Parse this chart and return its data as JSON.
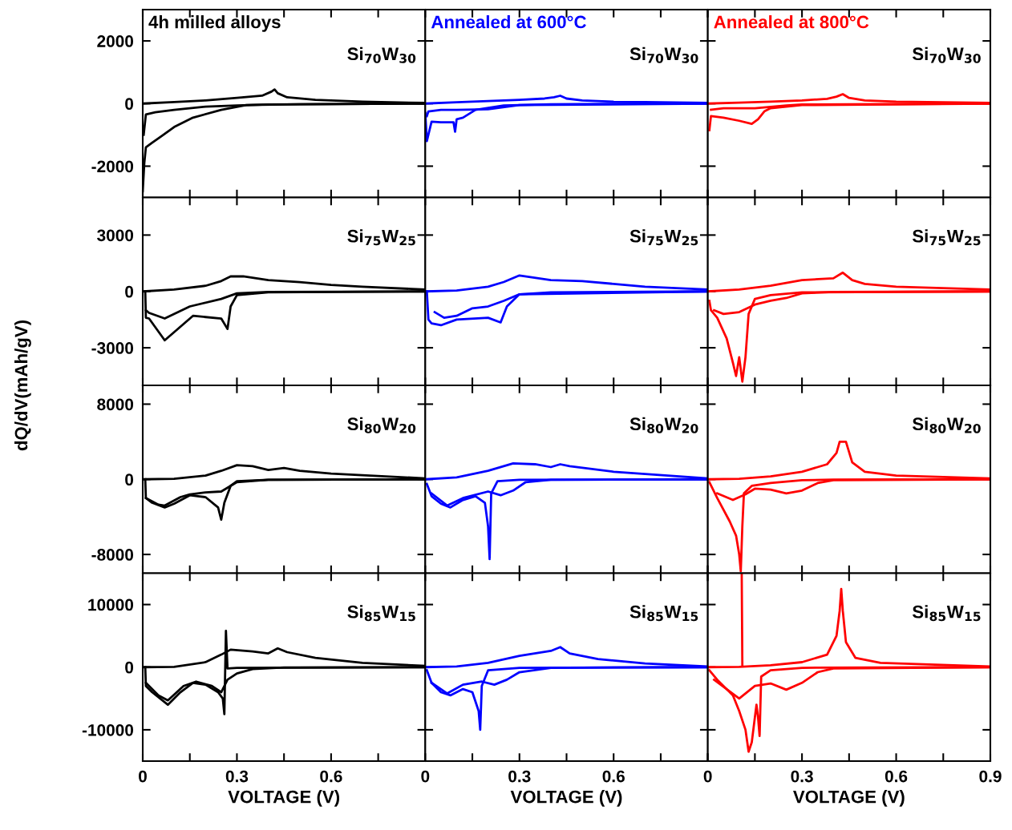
{
  "chart_data": [
    {
      "type": "line",
      "title": "4h milled alloys",
      "annotations": [
        "Si$_{70}$W$_{30}$"
      ],
      "xlim": [
        0,
        0.9
      ],
      "ylim": [
        -3000,
        3000
      ],
      "yticks": [
        -2000,
        0,
        2000
      ],
      "xticks": [
        0,
        {
          "value": 0.15,
          "label": null
        },
        0.3,
        {
          "value": 0.45,
          "label": null
        },
        0.6,
        {
          "value": 0.75,
          "label": null
        },
        {
          "value": 0.9,
          "label": null
        }
      ],
      "tick_labels": "y",
      "series": [
        {
          "color": "#000000",
          "x": [
            0,
            0.1,
            0.2,
            0.3,
            0.38,
            0.41,
            0.42,
            0.43,
            0.46,
            0.55,
            0.7,
            0.9
          ],
          "values": [
            0,
            50,
            100,
            180,
            250,
            380,
            450,
            330,
            200,
            120,
            60,
            20
          ]
        },
        {
          "color": "#000000",
          "x": [
            0.9,
            0.5,
            0.33,
            0.25,
            0.16,
            0.1,
            0.06,
            0.03,
            0.01,
            0.005,
            0
          ],
          "values": [
            0,
            -20,
            -50,
            -200,
            -450,
            -750,
            -1040,
            -1250,
            -1400,
            -1900,
            -2800
          ]
        },
        {
          "color": "#000000",
          "x": [
            0.9,
            0.4,
            0.3,
            0.2,
            0.1,
            0.04,
            0.01,
            0.003
          ],
          "values": [
            0,
            -30,
            -60,
            -100,
            -200,
            -280,
            -350,
            -1000
          ]
        }
      ]
    },
    {
      "type": "line",
      "title": "Annealed at 600°C",
      "annotations": [
        "Si$_{70}$W$_{30}$"
      ],
      "xlim": [
        0,
        0.9
      ],
      "ylim": [
        -3000,
        3000
      ],
      "yticks": [
        -2000,
        0,
        2000
      ],
      "xticks": [
        0,
        {
          "value": 0.15,
          "label": null
        },
        0.3,
        {
          "value": 0.45,
          "label": null
        },
        0.6,
        {
          "value": 0.75,
          "label": null
        },
        {
          "value": 0.9,
          "label": null
        }
      ],
      "tick_labels": false,
      "series": [
        {
          "color": "#0000ff",
          "x": [
            0,
            0.1,
            0.2,
            0.3,
            0.38,
            0.41,
            0.43,
            0.45,
            0.5,
            0.6,
            0.9
          ],
          "values": [
            0,
            40,
            80,
            120,
            160,
            200,
            250,
            160,
            100,
            60,
            20
          ]
        },
        {
          "color": "#0000ff",
          "x": [
            0.9,
            0.4,
            0.25,
            0.16,
            0.12,
            0.1,
            0.095,
            0.09,
            0.05,
            0.02,
            0.005,
            0
          ],
          "values": [
            0,
            -20,
            -60,
            -200,
            -450,
            -500,
            -900,
            -600,
            -600,
            -580,
            -1200,
            -300
          ]
        },
        {
          "color": "#0000ff",
          "x": [
            0.9,
            0.3,
            0.2,
            0.1,
            0.05,
            0.01,
            0.005
          ],
          "values": [
            0,
            -50,
            -180,
            -200,
            -200,
            -250,
            -400
          ]
        }
      ]
    },
    {
      "type": "line",
      "title": "Annealed at 800°C",
      "annotations": [
        "Si$_{70}$W$_{30}$"
      ],
      "xlim": [
        0,
        0.9
      ],
      "ylim": [
        -3000,
        3000
      ],
      "yticks": [
        -2000,
        0,
        2000
      ],
      "xticks": [
        0,
        {
          "value": 0.15,
          "label": null
        },
        0.3,
        {
          "value": 0.45,
          "label": null
        },
        0.6,
        {
          "value": 0.75,
          "label": null
        },
        {
          "value": 0.9,
          "label": null
        }
      ],
      "tick_labels": false,
      "series": [
        {
          "color": "#ff0000",
          "x": [
            0,
            0.1,
            0.2,
            0.3,
            0.38,
            0.41,
            0.43,
            0.45,
            0.5,
            0.6,
            0.9
          ],
          "values": [
            0,
            30,
            60,
            100,
            150,
            220,
            300,
            180,
            100,
            60,
            20
          ]
        },
        {
          "color": "#ff0000",
          "x": [
            0.9,
            0.3,
            0.2,
            0.18,
            0.16,
            0.14,
            0.1,
            0.05,
            0.01,
            0.005
          ],
          "values": [
            0,
            -50,
            -150,
            -250,
            -500,
            -650,
            -550,
            -450,
            -400,
            -850
          ]
        },
        {
          "color": "#ff0000",
          "x": [
            0.9,
            0.3,
            0.25,
            0.15,
            0.05,
            0.01
          ],
          "values": [
            0,
            -30,
            -60,
            -150,
            -150,
            -200
          ]
        }
      ]
    },
    {
      "type": "line",
      "annotations": [
        "Si$_{75}$W$_{25}$"
      ],
      "xlim": [
        0,
        0.9
      ],
      "ylim": [
        -5000,
        5000
      ],
      "yticks": [
        -3000,
        0,
        3000
      ],
      "xticks": [
        0,
        {
          "value": 0.15,
          "label": null
        },
        0.3,
        {
          "value": 0.45,
          "label": null
        },
        0.6,
        {
          "value": 0.75,
          "label": null
        },
        {
          "value": 0.9,
          "label": null
        }
      ],
      "tick_labels": "y",
      "ylabel": "dQ/dV(mAh/gV)",
      "series": [
        {
          "color": "#000000",
          "x": [
            0,
            0.1,
            0.2,
            0.25,
            0.28,
            0.32,
            0.4,
            0.5,
            0.6,
            0.7,
            0.9
          ],
          "values": [
            0,
            100,
            300,
            550,
            800,
            800,
            600,
            500,
            350,
            250,
            100
          ]
        },
        {
          "color": "#000000",
          "x": [
            0.9,
            0.4,
            0.3,
            0.28,
            0.27,
            0.25,
            0.16,
            0.07,
            0.02,
            0.01,
            0.008
          ],
          "values": [
            0,
            -50,
            -200,
            -800,
            -2000,
            -1440,
            -1300,
            -2600,
            -1440,
            -1400,
            0
          ]
        },
        {
          "color": "#000000",
          "x": [
            0.9,
            0.4,
            0.3,
            0.25,
            0.15,
            0.07,
            0.02,
            0.01
          ],
          "values": [
            0,
            -30,
            -100,
            -400,
            -800,
            -1440,
            -1140,
            -1000
          ]
        }
      ]
    },
    {
      "type": "line",
      "annotations": [
        "Si$_{75}$W$_{25}$"
      ],
      "xlim": [
        0,
        0.9
      ],
      "ylim": [
        -5000,
        5000
      ],
      "yticks": [
        -3000,
        0,
        3000
      ],
      "xticks": [
        0,
        {
          "value": 0.15,
          "label": null
        },
        0.3,
        {
          "value": 0.45,
          "label": null
        },
        0.6,
        {
          "value": 0.75,
          "label": null
        },
        {
          "value": 0.9,
          "label": null
        }
      ],
      "tick_labels": false,
      "series": [
        {
          "color": "#0000ff",
          "x": [
            0,
            0.1,
            0.2,
            0.25,
            0.3,
            0.4,
            0.5,
            0.6,
            0.7,
            0.9
          ],
          "values": [
            0,
            50,
            250,
            500,
            850,
            600,
            550,
            400,
            250,
            100
          ]
        },
        {
          "color": "#0000ff",
          "x": [
            0.9,
            0.4,
            0.3,
            0.26,
            0.24,
            0.2,
            0.1,
            0.05,
            0.02,
            0.01,
            0.005
          ],
          "values": [
            0,
            -50,
            -150,
            -800,
            -1650,
            -1400,
            -1500,
            -1800,
            -1700,
            -1500,
            0
          ]
        },
        {
          "color": "#0000ff",
          "x": [
            0.9,
            0.3,
            0.25,
            0.2,
            0.15,
            0.1,
            0.06,
            0.03
          ],
          "values": [
            0,
            -150,
            -500,
            -800,
            -900,
            -1300,
            -1400,
            -1100
          ]
        }
      ]
    },
    {
      "type": "line",
      "annotations": [
        "Si$_{75}$W$_{25}$"
      ],
      "xlim": [
        0,
        0.9
      ],
      "ylim": [
        -5000,
        5000
      ],
      "yticks": [
        -3000,
        0,
        3000
      ],
      "xticks": [
        0,
        {
          "value": 0.15,
          "label": null
        },
        0.3,
        {
          "value": 0.45,
          "label": null
        },
        0.6,
        {
          "value": 0.75,
          "label": null
        },
        {
          "value": 0.9,
          "label": null
        }
      ],
      "tick_labels": false,
      "series": [
        {
          "color": "#ff0000",
          "x": [
            0,
            0.1,
            0.2,
            0.3,
            0.4,
            0.43,
            0.46,
            0.5,
            0.6,
            0.9
          ],
          "values": [
            0,
            100,
            300,
            600,
            700,
            1000,
            600,
            400,
            250,
            100
          ]
        },
        {
          "color": "#ff0000",
          "x": [
            0.9,
            0.3,
            0.2,
            0.15,
            0.13,
            0.12,
            0.11,
            0.1,
            0.09,
            0.08,
            0.06,
            0.03,
            0.01,
            0.005
          ],
          "values": [
            0,
            -50,
            -200,
            -400,
            -1200,
            -3500,
            -4800,
            -3500,
            -4500,
            -3800,
            -2500,
            -1400,
            -1000,
            -500
          ]
        },
        {
          "color": "#ff0000",
          "x": [
            0.9,
            0.4,
            0.3,
            0.25,
            0.2,
            0.15,
            0.1,
            0.05,
            0.02
          ],
          "values": [
            0,
            -30,
            -100,
            -350,
            -500,
            -700,
            -1100,
            -1200,
            -1000
          ]
        }
      ]
    },
    {
      "type": "line",
      "annotations": [
        "Si$_{80}$W$_{20}$"
      ],
      "xlim": [
        0,
        0.9
      ],
      "ylim": [
        -10000,
        10000
      ],
      "yticks": [
        -8000,
        0,
        8000
      ],
      "xticks": [
        0,
        {
          "value": 0.15,
          "label": null
        },
        0.3,
        {
          "value": 0.45,
          "label": null
        },
        0.6,
        {
          "value": 0.75,
          "label": null
        },
        {
          "value": 0.9,
          "label": null
        }
      ],
      "tick_labels": "y",
      "series": [
        {
          "color": "#000000",
          "x": [
            0,
            0.1,
            0.2,
            0.25,
            0.3,
            0.35,
            0.4,
            0.45,
            0.5,
            0.6,
            0.9
          ],
          "values": [
            0,
            50,
            400,
            900,
            1500,
            1400,
            1000,
            1200,
            900,
            600,
            100
          ]
        },
        {
          "color": "#000000",
          "x": [
            0.9,
            0.4,
            0.3,
            0.28,
            0.26,
            0.25,
            0.24,
            0.2,
            0.15,
            0.1,
            0.07,
            0.03,
            0.01,
            0.008
          ],
          "values": [
            0,
            -50,
            -200,
            -700,
            -2500,
            -4300,
            -3000,
            -1900,
            -1700,
            -2600,
            -3000,
            -2500,
            -2000,
            0
          ]
        },
        {
          "color": "#000000",
          "x": [
            0.9,
            0.4,
            0.3,
            0.25,
            0.2,
            0.15,
            0.12,
            0.07,
            0.05,
            0.01
          ],
          "values": [
            0,
            -50,
            -300,
            -1300,
            -1400,
            -1600,
            -1900,
            -2800,
            -2700,
            -2000
          ]
        }
      ]
    },
    {
      "type": "line",
      "annotations": [
        "Si$_{80}$W$_{20}$"
      ],
      "xlim": [
        0,
        0.9
      ],
      "ylim": [
        -10000,
        10000
      ],
      "yticks": [
        -8000,
        0,
        8000
      ],
      "xticks": [
        0,
        {
          "value": 0.15,
          "label": null
        },
        0.3,
        {
          "value": 0.45,
          "label": null
        },
        0.6,
        {
          "value": 0.75,
          "label": null
        },
        {
          "value": 0.9,
          "label": null
        }
      ],
      "tick_labels": false,
      "series": [
        {
          "color": "#0000ff",
          "x": [
            0,
            0.1,
            0.2,
            0.28,
            0.35,
            0.4,
            0.43,
            0.46,
            0.6,
            0.9
          ],
          "values": [
            0,
            200,
            900,
            1700,
            1600,
            1300,
            1600,
            1400,
            800,
            100
          ]
        },
        {
          "color": "#0000ff",
          "x": [
            0.9,
            0.3,
            0.23,
            0.21,
            0.205,
            0.2,
            0.19,
            0.16,
            0.12,
            0.08,
            0.05,
            0.02,
            0.005
          ],
          "values": [
            0,
            -50,
            -200,
            -1500,
            -8500,
            -5000,
            -2500,
            -1800,
            -2200,
            -3000,
            -2600,
            -1800,
            -500
          ]
        },
        {
          "color": "#0000ff",
          "x": [
            0.9,
            0.4,
            0.32,
            0.28,
            0.24,
            0.2,
            0.12,
            0.07,
            0.02
          ],
          "values": [
            0,
            -50,
            -300,
            -1200,
            -1700,
            -1300,
            -2000,
            -2800,
            -1500
          ]
        }
      ]
    },
    {
      "type": "line",
      "annotations": [
        "Si$_{80}$W$_{20}$"
      ],
      "xlim": [
        0,
        0.9
      ],
      "ylim": [
        -10000,
        10000
      ],
      "yticks": [
        -8000,
        0,
        8000
      ],
      "xticks": [
        0,
        {
          "value": 0.15,
          "label": null
        },
        0.3,
        {
          "value": 0.45,
          "label": null
        },
        0.6,
        {
          "value": 0.75,
          "label": null
        },
        {
          "value": 0.9,
          "label": null
        }
      ],
      "tick_labels": false,
      "series": [
        {
          "color": "#ff0000",
          "x": [
            0,
            0.1,
            0.2,
            0.3,
            0.38,
            0.41,
            0.42,
            0.44,
            0.46,
            0.5,
            0.6,
            0.9
          ],
          "values": [
            0,
            50,
            300,
            800,
            1600,
            2800,
            4000,
            4000,
            1800,
            800,
            400,
            100
          ]
        },
        {
          "color": "#ff0000",
          "x": [
            0.9,
            0.4,
            0.3,
            0.2,
            0.14,
            0.115,
            0.11,
            0.105,
            0.1,
            0.09,
            0.07,
            0.03,
            0.005
          ],
          "values": [
            0,
            -30,
            -100,
            -400,
            -700,
            -1500,
            -5000,
            -9800,
            -8000,
            -6000,
            -4500,
            -2000,
            -300
          ]
        },
        {
          "color": "#ff0000",
          "x": [
            0.9,
            0.4,
            0.35,
            0.3,
            0.25,
            0.2,
            0.15,
            0.12,
            0.08,
            0.03
          ],
          "values": [
            0,
            -100,
            -400,
            -1200,
            -1500,
            -1100,
            -1000,
            -1600,
            -2200,
            -1500
          ]
        }
      ]
    },
    {
      "type": "line",
      "annotations": [
        "Si$_{85}$W$_{15}$"
      ],
      "xlabel": "VOLTAGE (V)",
      "xlim": [
        0,
        0.9
      ],
      "ylim": [
        -15000,
        15000
      ],
      "yticks": [
        -10000,
        0,
        10000
      ],
      "xticks": [
        0,
        {
          "value": 0.15,
          "label": null
        },
        0.3,
        {
          "value": 0.45,
          "label": null
        },
        0.6,
        {
          "value": 0.75,
          "label": null
        },
        {
          "value": 0.9,
          "label": null
        }
      ],
      "series": [
        {
          "color": "#000000",
          "x": [
            0,
            0.1,
            0.2,
            0.25,
            0.28,
            0.35,
            0.4,
            0.43,
            0.46,
            0.55,
            0.7,
            0.9
          ],
          "values": [
            0,
            50,
            800,
            2000,
            2800,
            2500,
            2200,
            3000,
            2400,
            1500,
            700,
            200
          ]
        },
        {
          "color": "#000000",
          "x": [
            0.9,
            0.3,
            0.27,
            0.265,
            0.26,
            0.255,
            0.24,
            0.2,
            0.16,
            0.12,
            0.08,
            0.03,
            0.01,
            0.008
          ],
          "values": [
            0,
            -100,
            -200,
            5800,
            -7500,
            -5000,
            -4000,
            -2800,
            -2500,
            -4000,
            -6000,
            -4000,
            -3000,
            0
          ]
        },
        {
          "color": "#000000",
          "x": [
            0.9,
            0.45,
            0.35,
            0.3,
            0.27,
            0.25,
            0.22,
            0.17,
            0.13,
            0.08,
            0.05,
            0.01
          ],
          "values": [
            0,
            -50,
            -300,
            -1000,
            -2000,
            -4000,
            -3000,
            -2300,
            -3000,
            -5300,
            -4500,
            -2500
          ]
        }
      ]
    },
    {
      "type": "line",
      "annotations": [
        "Si$_{85}$W$_{15}$"
      ],
      "xlabel": "VOLTAGE (V)",
      "xlim": [
        0,
        0.9
      ],
      "ylim": [
        -15000,
        15000
      ],
      "yticks": [
        -10000,
        0,
        10000
      ],
      "xticks": [
        0,
        {
          "value": 0.15,
          "label": null
        },
        0.3,
        {
          "value": 0.45,
          "label": null
        },
        0.6,
        {
          "value": 0.75,
          "label": null
        },
        {
          "value": 0.9,
          "label": null
        }
      ],
      "tick_labels": "x",
      "series": [
        {
          "color": "#0000ff",
          "x": [
            0,
            0.1,
            0.2,
            0.3,
            0.4,
            0.43,
            0.46,
            0.55,
            0.7,
            0.9
          ],
          "values": [
            0,
            100,
            700,
            1800,
            2600,
            3200,
            2200,
            1300,
            600,
            100
          ]
        },
        {
          "color": "#0000ff",
          "x": [
            0.9,
            0.3,
            0.2,
            0.18,
            0.175,
            0.17,
            0.15,
            0.12,
            0.08,
            0.05,
            0.02,
            0.005
          ],
          "values": [
            0,
            -100,
            -500,
            -3000,
            -10000,
            -7000,
            -4000,
            -3500,
            -4500,
            -4000,
            -2500,
            -500
          ]
        },
        {
          "color": "#0000ff",
          "x": [
            0.9,
            0.4,
            0.3,
            0.26,
            0.22,
            0.18,
            0.12,
            0.07,
            0.02
          ],
          "values": [
            0,
            -100,
            -800,
            -2000,
            -2800,
            -2300,
            -2800,
            -4200,
            -2500
          ]
        }
      ]
    },
    {
      "type": "line",
      "annotations": [
        "Si$_{85}$W$_{15}$"
      ],
      "xlabel": "VOLTAGE (V)",
      "xlim": [
        0,
        0.9
      ],
      "ylim": [
        -15000,
        15000
      ],
      "yticks": [
        -10000,
        0,
        10000
      ],
      "xticks": [
        0,
        {
          "value": 0.15,
          "label": null
        },
        0.3,
        {
          "value": 0.45,
          "label": null
        },
        0.6,
        {
          "value": 0.75,
          "label": null
        },
        0.9
      ],
      "tick_labels": "x",
      "series": [
        {
          "color": "#ff0000",
          "x": [
            0,
            0.1,
            0.2,
            0.3,
            0.38,
            0.41,
            0.42,
            0.425,
            0.43,
            0.44,
            0.47,
            0.55,
            0.9
          ],
          "values": [
            0,
            50,
            300,
            800,
            2000,
            5000,
            9000,
            12500,
            9000,
            4000,
            1500,
            700,
            100
          ]
        },
        {
          "color": "#ff0000",
          "x": [
            0.108,
            0.11
          ],
          "values": [
            15000,
            300
          ]
        },
        {
          "color": "#ff0000",
          "x": [
            0.9,
            0.3,
            0.2,
            0.17,
            0.165,
            0.16,
            0.155,
            0.15,
            0.14,
            0.13,
            0.12,
            0.1,
            0.08,
            0.03,
            0.005
          ],
          "values": [
            0,
            -100,
            -500,
            -1500,
            -11000,
            -8000,
            -6000,
            -8000,
            -12000,
            -13500,
            -10000,
            -7000,
            -4500,
            -2000,
            -500
          ]
        },
        {
          "color": "#ff0000",
          "x": [
            0.9,
            0.4,
            0.35,
            0.3,
            0.25,
            0.2,
            0.15,
            0.1,
            0.02
          ],
          "values": [
            0,
            -200,
            -800,
            -2500,
            -3600,
            -2600,
            -3000,
            -5000,
            -2000
          ]
        }
      ]
    }
  ]
}
